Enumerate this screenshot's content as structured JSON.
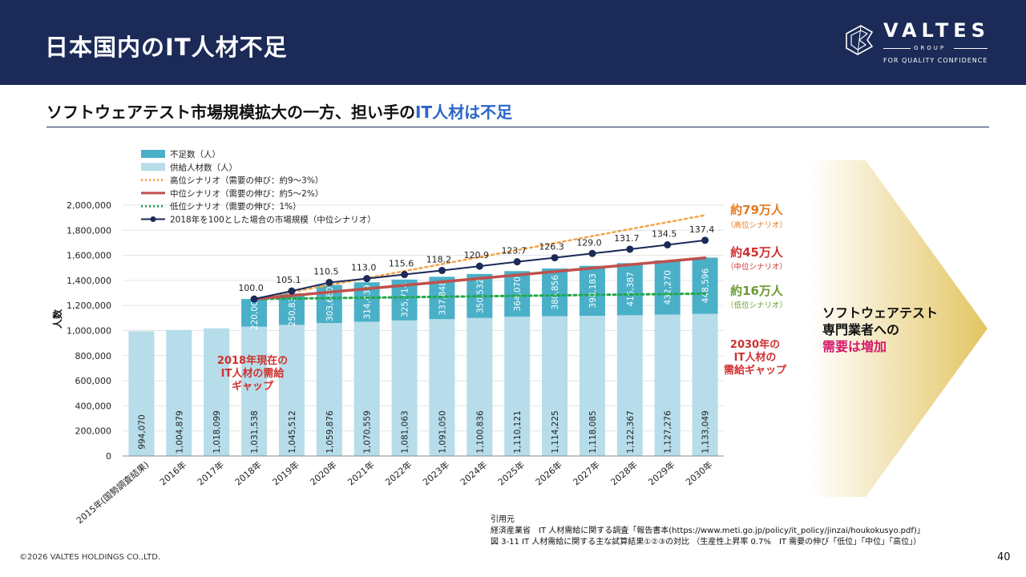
{
  "header": {
    "title": "日本国内のIT人材不足"
  },
  "logo": {
    "name": "VALTES",
    "group": "GROUP",
    "tagline": "FOR QUALITY CONFIDENCE"
  },
  "subtitle": {
    "main": "ソフトウェアテスト市場規模拡大の一方、担い手の",
    "highlight": "IT人材は不足"
  },
  "chart_data": {
    "type": "bar",
    "ylabel": "人数",
    "ylim": [
      0,
      2000000
    ],
    "yticks": [
      "0",
      "200,000",
      "400,000",
      "600,000",
      "800,000",
      "1,000,000",
      "1,200,000",
      "1,400,000",
      "1,600,000",
      "1,800,000",
      "2,000,000"
    ],
    "categories": [
      "2015年(国勢調査結果)",
      "2016年",
      "2017年",
      "2018年",
      "2019年",
      "2020年",
      "2021年",
      "2022年",
      "2023年",
      "2024年",
      "2025年",
      "2026年",
      "2027年",
      "2028年",
      "2029年",
      "2030年"
    ],
    "supply": [
      994070,
      1004879,
      1018099,
      1031538,
      1045512,
      1059876,
      1070559,
      1081063,
      1091050,
      1100836,
      1110121,
      1114225,
      1118085,
      1122367,
      1127276,
      1133049
    ],
    "supply_labels": [
      "994,070",
      "1,004,879",
      "1,018,099",
      "1,031,538",
      "1,045,512",
      "1,059,876",
      "1,070,559",
      "1,081,063",
      "1,091,050",
      "1,100,836",
      "1,110,121",
      "1,114,225",
      "1,118,085",
      "1,122,367",
      "1,127,276",
      "1,133,049"
    ],
    "shortage": [
      null,
      null,
      null,
      220000,
      250835,
      303680,
      314439,
      325714,
      337848,
      350532,
      364070,
      380856,
      398183,
      415387,
      432270,
      448596
    ],
    "shortage_labels": [
      "",
      "",
      "",
      "220,000",
      "250,835",
      "303,680",
      "314,439",
      "325,714",
      "337,848",
      "350,532",
      "364,070",
      "380,856",
      "398,183",
      "415,387",
      "432,270",
      "448,596"
    ],
    "high_end": 1920000,
    "mid_end": 1580000,
    "low_end": 1295000,
    "market_index": [
      null,
      null,
      null,
      100.0,
      105.1,
      110.5,
      113.0,
      115.6,
      118.2,
      120.9,
      123.7,
      126.3,
      129.0,
      131.7,
      134.5,
      137.4
    ],
    "market_index_labels": [
      "",
      "",
      "",
      "100.0",
      "105.1",
      "110.5",
      "113.0",
      "115.6",
      "118.2",
      "120.9",
      "123.7",
      "126.3",
      "129.0",
      "131.7",
      "134.5",
      "137.4"
    ],
    "legend": [
      "不足数（人）",
      "供給人材数（人）",
      "高位シナリオ（需要の伸び：約9～3%）",
      "中位シナリオ（需要の伸び：約5～2%）",
      "低位シナリオ（需要の伸び：1%）",
      "2018年を100とした場合の市場規模（中位シナリオ）"
    ],
    "annotations": {
      "high_main": "約79万人",
      "high_sub": "（高位シナリオ）",
      "mid_main": "約45万人",
      "mid_sub": "（中位シナリオ）",
      "low_main": "約16万人",
      "low_sub": "（低位シナリオ）",
      "gap2018": [
        "2018年現在の",
        "IT人材の需給",
        "ギャップ"
      ],
      "gap2030": [
        "2030年の",
        "IT人材の",
        "需給ギャップ"
      ]
    }
  },
  "colors": {
    "shortage": "#4ab0c8",
    "supply": "#b6dde9",
    "high": "#f2a44a",
    "mid": "#c0504d",
    "low": "#22a84a",
    "index": "#1b2a57",
    "header": "#1b2a57",
    "accent_red": "#d03030",
    "accent_orange": "#e4791e",
    "accent_green": "#6a9a32"
  },
  "callout": {
    "line1": "ソフトウェアテスト",
    "line2": "専門業者への",
    "line3": "需要は増加"
  },
  "citation": {
    "line1": "引用元",
    "line2": "経済産業省　IT 人材需給に関する調査「報告書本(https://www.meti.go.jp/policy/it_policy/jinzai/houkokusyo.pdf)」",
    "line3": "図 3-11 IT 人材需給に関する主な試算結果①②③の対比 （生産性上昇率 0.7%　IT 需要の伸び「低位」「中位」「高位」）"
  },
  "footer": {
    "copyright": "©2026 VALTES HOLDINGS CO.,LTD.",
    "page": "40"
  }
}
